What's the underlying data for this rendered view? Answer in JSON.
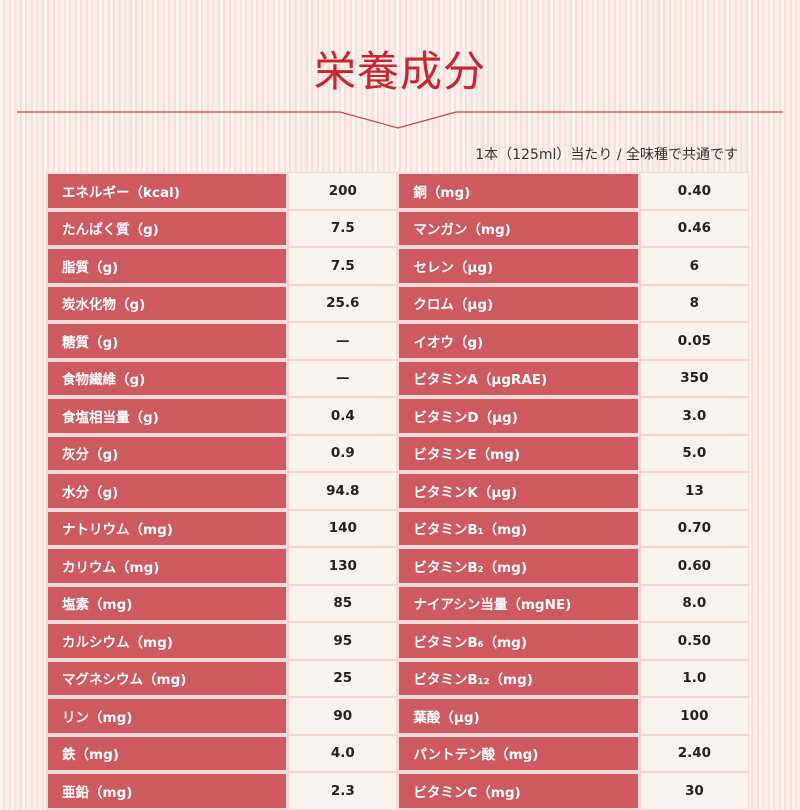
{
  "title": "栄養成分",
  "note": "1本（125ml）当たり / 全味種で共通です",
  "colors": {
    "title": "#c4252f",
    "label_bg": "#cd5a60",
    "value_bg": "#f9f3ef"
  },
  "left": [
    {
      "label": "エネルギー（kcal)",
      "value": "200"
    },
    {
      "label": "たんぱく質（g)",
      "value": "7.5"
    },
    {
      "label": "脂質（g)",
      "value": "7.5"
    },
    {
      "label": "炭水化物（g)",
      "value": "25.6"
    },
    {
      "label": "糖質（g)",
      "value": "—"
    },
    {
      "label": "食物繊維（g)",
      "value": "—"
    },
    {
      "label": "食塩相当量（g)",
      "value": "0.4"
    },
    {
      "label": "灰分（g)",
      "value": "0.9"
    },
    {
      "label": "水分（g)",
      "value": "94.8"
    },
    {
      "label": "ナトリウム（mg)",
      "value": "140"
    },
    {
      "label": "カリウム（mg)",
      "value": "130"
    },
    {
      "label": "塩素（mg)",
      "value": "85"
    },
    {
      "label": "カルシウム（mg)",
      "value": "95"
    },
    {
      "label": "マグネシウム（mg)",
      "value": "25"
    },
    {
      "label": "リン（mg)",
      "value": "90"
    },
    {
      "label": "鉄（mg)",
      "value": "4.0"
    },
    {
      "label": "亜鉛（mg)",
      "value": "2.3"
    }
  ],
  "right": [
    {
      "label": "銅（mg)",
      "value": "0.40"
    },
    {
      "label": "マンガン（mg)",
      "value": "0.46"
    },
    {
      "label": "セレン（μg)",
      "value": "6"
    },
    {
      "label": "クロム（μg)",
      "value": "8"
    },
    {
      "label": "イオウ（g)",
      "value": "0.05"
    },
    {
      "label": "ビタミンA（μgRAE)",
      "value": "350"
    },
    {
      "label": "ビタミンD（μg)",
      "value": "3.0"
    },
    {
      "label": "ビタミンE（mg)",
      "value": "5.0"
    },
    {
      "label": "ビタミンK（μg)",
      "value": "13"
    },
    {
      "label": "ビタミンB₁（mg)",
      "value": "0.70"
    },
    {
      "label": "ビタミンB₂（mg)",
      "value": "0.60"
    },
    {
      "label": "ナイアシン当量（mgNE)",
      "value": "8.0"
    },
    {
      "label": "ビタミンB₆（mg)",
      "value": "0.50"
    },
    {
      "label": "ビタミンB₁₂（mg)",
      "value": "1.0"
    },
    {
      "label": "葉酸（μg)",
      "value": "100"
    },
    {
      "label": "パントテン酸（mg)",
      "value": "2.40"
    },
    {
      "label": "ビタミンC（mg)",
      "value": "30"
    }
  ]
}
